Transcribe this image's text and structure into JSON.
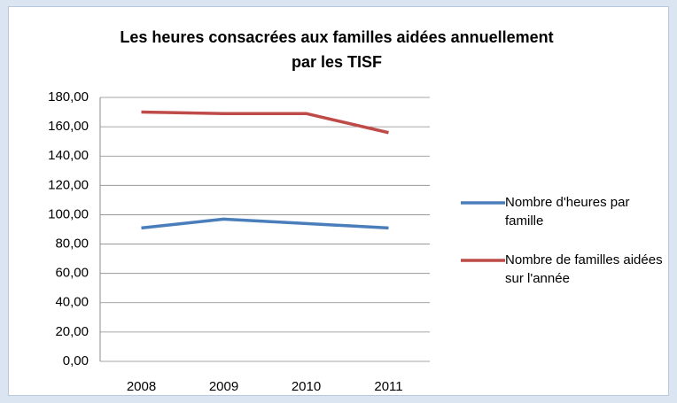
{
  "chart_data": {
    "type": "line",
    "title": "Les heures consacrées aux familles aidées annuellement par les TISF",
    "categories": [
      "2008",
      "2009",
      "2010",
      "2011"
    ],
    "series": [
      {
        "name": "Nombre d'heures par famille",
        "color": "#4a7ebb",
        "values": [
          91,
          97,
          94,
          91
        ]
      },
      {
        "name": "Nombre de familles aidées sur l'année",
        "color": "#be4b48",
        "values": [
          170,
          169,
          169,
          156
        ]
      }
    ],
    "ylim": [
      0,
      180
    ],
    "yticks": [
      {
        "value": 0,
        "label": "0,00"
      },
      {
        "value": 20,
        "label": "20,00"
      },
      {
        "value": 40,
        "label": "40,00"
      },
      {
        "value": 60,
        "label": "60,00"
      },
      {
        "value": 80,
        "label": "80,00"
      },
      {
        "value": 100,
        "label": "100,00"
      },
      {
        "value": 120,
        "label": "120,00"
      },
      {
        "value": 140,
        "label": "140,00"
      },
      {
        "value": 160,
        "label": "160,00"
      },
      {
        "value": 180,
        "label": "180,00"
      }
    ],
    "grid": true,
    "legend": "right"
  }
}
